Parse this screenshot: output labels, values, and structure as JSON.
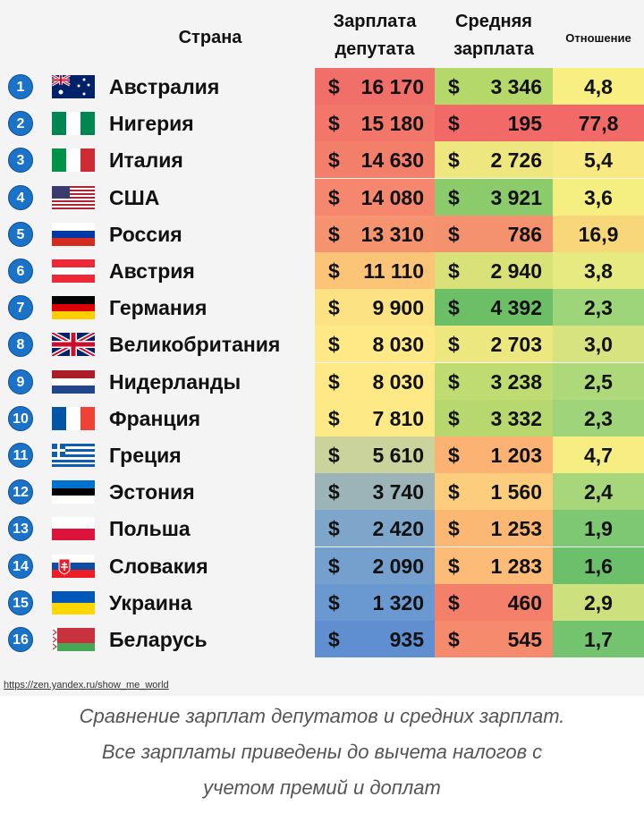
{
  "headers": {
    "country": "Страна",
    "deputy": [
      "Зарплата",
      "депутата"
    ],
    "average": [
      "Средняя",
      "зарплата"
    ],
    "ratio": "Отношение"
  },
  "currency": "$",
  "chart_data": {
    "type": "table",
    "columns": [
      "Страна",
      "Зарплата депутата",
      "Средняя зарплата",
      "Отношение"
    ],
    "rows": [
      {
        "rank": "1",
        "country": "Австралия",
        "flag": "australia-flag",
        "deputy": "16 170",
        "average": "3 346",
        "ratio": "4,8",
        "colors": [
          "#f06f68",
          "#b5d86b",
          "#f7ef82"
        ]
      },
      {
        "rank": "2",
        "country": "Нигерия",
        "flag": "nigeria-flag",
        "deputy": "15 180",
        "average": "195",
        "ratio": "77,8",
        "colors": [
          "#f2776a",
          "#f26a68",
          "#f26a68"
        ]
      },
      {
        "rank": "3",
        "country": "Италия",
        "flag": "italy-flag",
        "deputy": "14 630",
        "average": "2 726",
        "ratio": "5,4",
        "colors": [
          "#f37f6b",
          "#eee67f",
          "#f9e983"
        ]
      },
      {
        "rank": "4",
        "country": "США",
        "flag": "usa-flag",
        "deputy": "14 080",
        "average": "3 921",
        "ratio": "3,6",
        "colors": [
          "#f4876d",
          "#8bcb6b",
          "#f5ef82"
        ]
      },
      {
        "rank": "5",
        "country": "Россия",
        "flag": "russia-flag",
        "deputy": "13 310",
        "average": "786",
        "ratio": "16,9",
        "colors": [
          "#f5936f",
          "#f49270",
          "#f7d779"
        ]
      },
      {
        "rank": "6",
        "country": "Австрия",
        "flag": "austria-flag",
        "deputy": "11 110",
        "average": "2 940",
        "ratio": "3,8",
        "colors": [
          "#fbc477",
          "#d9e279",
          "#e6ea81"
        ]
      },
      {
        "rank": "7",
        "country": "Германия",
        "flag": "germany-flag",
        "deputy": "9 900",
        "average": "4 392",
        "ratio": "2,3",
        "colors": [
          "#fde283",
          "#6cbf67",
          "#9ed57a"
        ]
      },
      {
        "rank": "8",
        "country": "Великобритания",
        "flag": "uk-flag",
        "deputy": "8 030",
        "average": "2 703",
        "ratio": "3,0",
        "colors": [
          "#fee986",
          "#ede780",
          "#d7e37e"
        ]
      },
      {
        "rank": "9",
        "country": "Нидерланды",
        "flag": "netherlands-flag",
        "deputy": "8 030",
        "average": "3 238",
        "ratio": "2,5",
        "colors": [
          "#fee986",
          "#bfdc73",
          "#add97b"
        ]
      },
      {
        "rank": "10",
        "country": "Франция",
        "flag": "france-flag",
        "deputy": "7 810",
        "average": "3 332",
        "ratio": "2,3",
        "colors": [
          "#fdea87",
          "#b6d86f",
          "#9fd47a"
        ]
      },
      {
        "rank": "11",
        "country": "Греция",
        "flag": "greece-flag",
        "deputy": "5 610",
        "average": "1 203",
        "ratio": "4,7",
        "colors": [
          "#c9d39b",
          "#fbb272",
          "#f7ee83"
        ]
      },
      {
        "rank": "12",
        "country": "Эстония",
        "flag": "estonia-flag",
        "deputy": "3 740",
        "average": "1 560",
        "ratio": "2,4",
        "colors": [
          "#9cb3b8",
          "#fccd7c",
          "#a8d77b"
        ]
      },
      {
        "rank": "13",
        "country": "Польша",
        "flag": "poland-flag",
        "deputy": "2 420",
        "average": "1 253",
        "ratio": "1,9",
        "colors": [
          "#7ea6cb",
          "#fbb774",
          "#7fc873"
        ]
      },
      {
        "rank": "14",
        "country": "Словакия",
        "flag": "slovakia-flag",
        "deputy": "2 090",
        "average": "1 283",
        "ratio": "1,6",
        "colors": [
          "#75a0cd",
          "#fcbb76",
          "#6cc06b"
        ]
      },
      {
        "rank": "15",
        "country": "Украина",
        "flag": "ukraine-flag",
        "deputy": "1 320",
        "average": "460",
        "ratio": "2,9",
        "colors": [
          "#6a98d0",
          "#f47f6b",
          "#cce17d"
        ]
      },
      {
        "rank": "16",
        "country": "Беларусь",
        "flag": "belarus-flag",
        "deputy": "935",
        "average": "545",
        "ratio": "1,7",
        "colors": [
          "#5f8fd1",
          "#f58a6d",
          "#74c46f"
        ]
      }
    ]
  },
  "source": "https://zen.yandex.ru/show_me_world",
  "caption": [
    "Сравнение зарплат депутатов и средних зарплат.",
    "Все зарплаты приведены до вычета налогов с",
    "учетом премий и доплат"
  ]
}
